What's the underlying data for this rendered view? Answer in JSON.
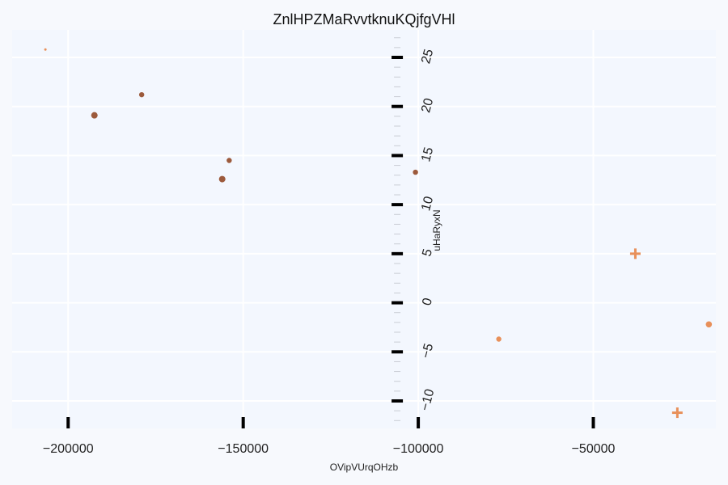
{
  "chart_data": {
    "type": "scatter",
    "title": "ZnlHPZMaRvvtknuKQjfgVHl",
    "xlabel": "OVipVUrqOHzb",
    "ylabel": "uHaRyxN",
    "xlim": [
      -216000,
      -15000
    ],
    "ylim": [
      -12.8,
      27.8
    ],
    "x_ticks": [
      -200000,
      -150000,
      -100000,
      -50000
    ],
    "x_tick_labels": [
      "−200000",
      "−150000",
      "−100000",
      "−50000"
    ],
    "y_ticks": [
      -10,
      -5,
      0,
      5,
      10,
      15,
      20,
      25
    ],
    "y_tick_labels": [
      "−10",
      "−5",
      "0",
      "5",
      "10",
      "15",
      "20",
      "25"
    ],
    "grid": true,
    "colors": {
      "background": "#f3f7fe",
      "grid": "#ffffff",
      "series_dark": "#9c5a3c",
      "series_light": "#e8905a"
    },
    "points": [
      {
        "x": -206500,
        "y": 25.8,
        "marker": "circle",
        "size": 1.5,
        "color": "#e8905a"
      },
      {
        "x": -179000,
        "y": 21.2,
        "marker": "circle",
        "size": 3.2,
        "color": "#9c5a3c"
      },
      {
        "x": -192500,
        "y": 19.1,
        "marker": "circle",
        "size": 4.0,
        "color": "#9c5a3c"
      },
      {
        "x": -154000,
        "y": 14.5,
        "marker": "circle",
        "size": 3.2,
        "color": "#9c5a3c"
      },
      {
        "x": -156000,
        "y": 12.6,
        "marker": "circle",
        "size": 4.0,
        "color": "#9c5a3c"
      },
      {
        "x": -100800,
        "y": 13.3,
        "marker": "circle",
        "size": 3.2,
        "color": "#9c5a3c"
      },
      {
        "x": -38000,
        "y": 5.0,
        "marker": "plus",
        "size": 6.5,
        "color": "#e8905a"
      },
      {
        "x": -17000,
        "y": -2.2,
        "marker": "circle",
        "size": 3.8,
        "color": "#e8905a"
      },
      {
        "x": -77000,
        "y": -3.7,
        "marker": "circle",
        "size": 3.2,
        "color": "#e8905a"
      },
      {
        "x": -26000,
        "y": -11.2,
        "marker": "plus",
        "size": 6.5,
        "color": "#e8905a"
      }
    ]
  }
}
